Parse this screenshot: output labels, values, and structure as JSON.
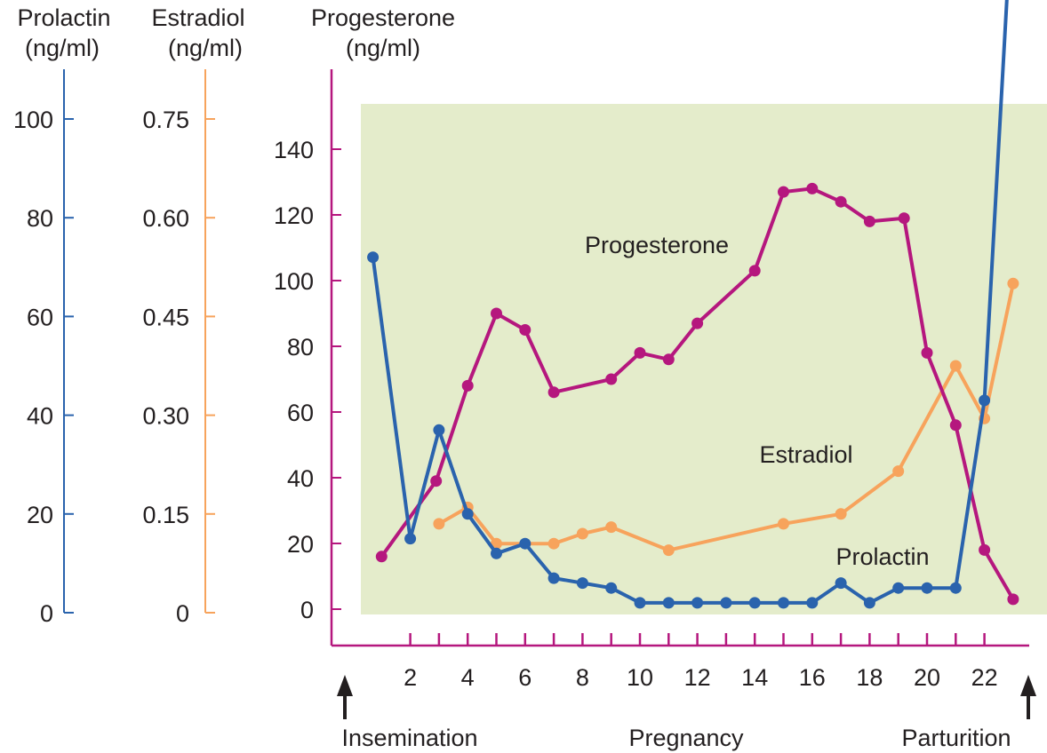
{
  "chart_data": {
    "type": "line",
    "colors": {
      "prolactin": "#2a63ad",
      "estradiol": "#f7a35c",
      "progesterone": "#b5177e",
      "plot_background": "#e4eccb",
      "text": "#231f20"
    },
    "axes": {
      "prolactin": {
        "title_line1": "Prolactin",
        "title_line2": "(ng/ml)",
        "range": [
          0,
          100
        ],
        "ticks": [
          0,
          20,
          40,
          60,
          80,
          100
        ],
        "tick_labels": [
          "0",
          "20",
          "40",
          "60",
          "80",
          "100"
        ]
      },
      "estradiol": {
        "title_line1": "Estradiol",
        "title_line2": "(ng/ml)",
        "range": [
          0,
          0.75
        ],
        "ticks": [
          0,
          0.15,
          0.3,
          0.45,
          0.6,
          0.75
        ],
        "tick_labels": [
          "0",
          "0.15",
          "0.30",
          "0.45",
          "0.60",
          "0.75"
        ]
      },
      "progesterone": {
        "title_line1": "Progesterone",
        "title_line2": "(ng/ml)",
        "range": [
          0,
          150
        ],
        "ticks": [
          0,
          20,
          40,
          60,
          80,
          100,
          120,
          140
        ],
        "tick_labels": [
          "0",
          "20",
          "40",
          "60",
          "80",
          "100",
          "120",
          "140"
        ]
      },
      "x": {
        "range": [
          0,
          24
        ],
        "minor_ticks": [
          2,
          3,
          4,
          5,
          6,
          7,
          8,
          9,
          10,
          11,
          12,
          13,
          14,
          15,
          16,
          17,
          18,
          19,
          20,
          21,
          22
        ],
        "labeled_ticks": [
          2,
          4,
          6,
          8,
          10,
          12,
          14,
          16,
          18,
          20,
          22
        ],
        "tick_labels": [
          "2",
          "4",
          "6",
          "8",
          "10",
          "12",
          "14",
          "16",
          "18",
          "20",
          "22"
        ]
      }
    },
    "series": [
      {
        "name": "Progesterone",
        "axis": "progesterone",
        "points": [
          [
            1,
            16
          ],
          [
            2.9,
            39
          ],
          [
            4,
            68
          ],
          [
            5,
            90
          ],
          [
            6,
            85
          ],
          [
            7,
            66
          ],
          [
            9,
            70
          ],
          [
            10,
            78
          ],
          [
            11,
            76
          ],
          [
            12,
            87
          ],
          [
            14,
            103
          ],
          [
            15,
            127
          ],
          [
            16,
            128
          ],
          [
            17,
            124
          ],
          [
            18,
            118
          ],
          [
            19.2,
            119
          ],
          [
            20,
            78
          ],
          [
            21,
            56
          ],
          [
            22,
            18
          ],
          [
            23,
            3
          ]
        ]
      },
      {
        "name": "Estradiol",
        "axis": "estradiol",
        "points": [
          [
            3,
            0.135
          ],
          [
            4,
            0.16
          ],
          [
            5,
            0.105
          ],
          [
            7,
            0.105
          ],
          [
            8,
            0.12
          ],
          [
            9,
            0.13
          ],
          [
            11,
            0.095
          ],
          [
            15,
            0.135
          ],
          [
            17,
            0.15
          ],
          [
            19,
            0.215
          ],
          [
            21,
            0.375
          ],
          [
            22,
            0.295
          ],
          [
            23,
            0.5
          ]
        ]
      },
      {
        "name": "Prolactin",
        "axis": "prolactin",
        "points": [
          [
            0.7,
            72
          ],
          [
            2,
            15
          ],
          [
            3,
            37
          ],
          [
            4,
            20
          ],
          [
            5,
            12
          ],
          [
            6,
            14
          ],
          [
            7,
            7
          ],
          [
            8,
            6
          ],
          [
            9,
            5
          ],
          [
            10,
            2
          ],
          [
            11,
            2
          ],
          [
            12,
            2
          ],
          [
            13,
            2
          ],
          [
            14,
            2
          ],
          [
            15,
            2
          ],
          [
            16,
            2
          ],
          [
            17,
            6
          ],
          [
            18,
            2
          ],
          [
            19,
            5
          ],
          [
            20,
            5
          ],
          [
            21,
            5
          ],
          [
            22,
            43
          ],
          [
            23,
            147
          ]
        ]
      }
    ],
    "annotations": {
      "start_event": "Insemination",
      "middle_event": "Pregnancy",
      "end_event": "Parturition"
    }
  }
}
